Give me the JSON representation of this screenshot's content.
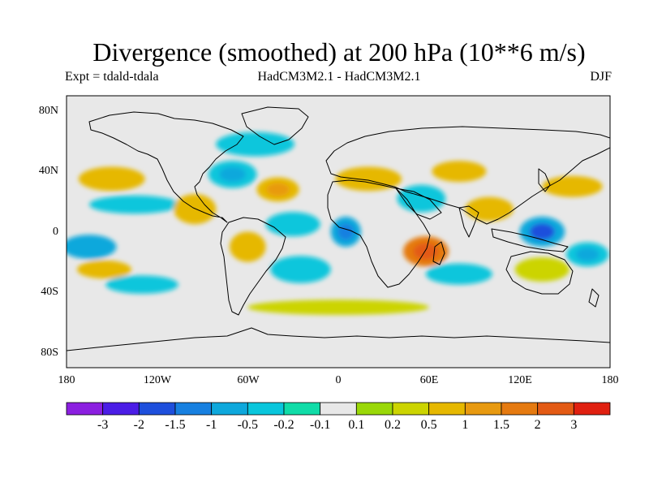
{
  "map": {
    "title": "Divergence (smoothed) at 200 hPa (10**6 m/s)",
    "subtitle_left": "Expt = tdald-tdala",
    "subtitle_center": "HadCM3M2.1 - HadCM3M2.1",
    "subtitle_right": "DJF",
    "projection": "equirectangular",
    "lon_range": [
      -180,
      180
    ],
    "lat_range": [
      -90,
      90
    ],
    "lat_ticks": [
      "80N",
      "40N",
      "0",
      "40S",
      "80S"
    ],
    "lon_ticks": [
      "180",
      "120W",
      "60W",
      "0",
      "60E",
      "120E",
      "180"
    ],
    "no_data_color": "#e8e8e8",
    "coastline_color": "#000000"
  },
  "colorbar": {
    "labels": [
      "-3",
      "-2",
      "-1.5",
      "-1",
      "-0.5",
      "-0.2",
      "-0.1",
      "0.1",
      "0.2",
      "0.5",
      "1",
      "1.5",
      "2",
      "3"
    ],
    "colors": [
      "#8b1fe0",
      "#4b1de6",
      "#1e4fdc",
      "#1780e0",
      "#0ea8dc",
      "#09c6dc",
      "#10dca8",
      "#e8e8e8",
      "#9ad808",
      "#ccd400",
      "#e6b800",
      "#e89a10",
      "#e57a10",
      "#e35a14",
      "#e02010"
    ]
  },
  "chart_data": {
    "type": "heatmap",
    "variable": "200 hPa divergence (smoothed), tdald minus tdala",
    "units": "10**6 m/s",
    "season": "DJF",
    "regions": [
      {
        "name": "N Pacific subtropics",
        "lon": -150,
        "lat": 35,
        "rx": 22,
        "ry": 8,
        "value": 0.6
      },
      {
        "name": "Central Pacific subtropics",
        "lon": -135,
        "lat": 18,
        "rx": 30,
        "ry": 6,
        "value": -0.4
      },
      {
        "name": "Equatorial E Pacific",
        "lon": -165,
        "lat": -10,
        "rx": 18,
        "ry": 8,
        "value": -0.6
      },
      {
        "name": "SE Pacific",
        "lon": -155,
        "lat": -25,
        "rx": 18,
        "ry": 6,
        "value": 0.6
      },
      {
        "name": "S Pacific south",
        "lon": -130,
        "lat": -35,
        "rx": 24,
        "ry": 6,
        "value": -0.4
      },
      {
        "name": "Mexico / Gulf",
        "lon": -95,
        "lat": 15,
        "rx": 14,
        "ry": 10,
        "value": 0.5
      },
      {
        "name": "US East Coast / W Atlantic",
        "lon": -70,
        "lat": 38,
        "rx": 16,
        "ry": 9,
        "value": -0.5
      },
      {
        "name": "N Atlantic trough",
        "lon": -55,
        "lat": 58,
        "rx": 26,
        "ry": 8,
        "value": -0.4
      },
      {
        "name": "Central Atlantic",
        "lon": -40,
        "lat": 28,
        "rx": 14,
        "ry": 8,
        "value": 0.7
      },
      {
        "name": "Tropical Atlantic",
        "lon": -30,
        "lat": 5,
        "rx": 18,
        "ry": 8,
        "value": -0.3
      },
      {
        "name": "South America",
        "lon": -60,
        "lat": -10,
        "rx": 12,
        "ry": 10,
        "value": 0.6
      },
      {
        "name": "S Atlantic",
        "lon": -25,
        "lat": -25,
        "rx": 20,
        "ry": 9,
        "value": -0.4
      },
      {
        "name": "Gulf of Guinea",
        "lon": 5,
        "lat": 0,
        "rx": 10,
        "ry": 10,
        "value": -0.9
      },
      {
        "name": "Mediterranean / N Africa",
        "lon": 20,
        "lat": 35,
        "rx": 22,
        "ry": 8,
        "value": 0.5
      },
      {
        "name": "East Africa / W Indian Ocean",
        "lon": 58,
        "lat": -13,
        "rx": 15,
        "ry": 10,
        "value": 1.6
      },
      {
        "name": "Arabia / Middle East",
        "lon": 55,
        "lat": 22,
        "rx": 16,
        "ry": 9,
        "value": -0.4
      },
      {
        "name": "Central Asia",
        "lon": 80,
        "lat": 40,
        "rx": 18,
        "ry": 7,
        "value": 0.5
      },
      {
        "name": "S Indian Ocean",
        "lon": 80,
        "lat": -28,
        "rx": 22,
        "ry": 7,
        "value": -0.4
      },
      {
        "name": "Bay of Bengal / SE Asia",
        "lon": 100,
        "lat": 15,
        "rx": 16,
        "ry": 8,
        "value": 0.6
      },
      {
        "name": "Maritime Continent / W Pacific",
        "lon": 135,
        "lat": 0,
        "rx": 15,
        "ry": 10,
        "value": -1.0
      },
      {
        "name": "NW Pacific",
        "lon": 155,
        "lat": 30,
        "rx": 20,
        "ry": 7,
        "value": 0.6
      },
      {
        "name": "Australia",
        "lon": 135,
        "lat": -25,
        "rx": 18,
        "ry": 8,
        "value": 0.3
      },
      {
        "name": "SW Pacific",
        "lon": 165,
        "lat": -15,
        "rx": 14,
        "ry": 8,
        "value": -0.5
      },
      {
        "name": "Southern Ocean",
        "lon": 0,
        "lat": -50,
        "rx": 60,
        "ry": 5,
        "value": 0.3
      }
    ]
  }
}
